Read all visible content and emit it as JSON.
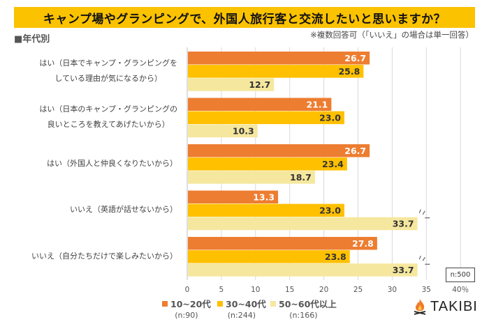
{
  "header": {
    "title": "キャンプ場やグランピングで、外国人旅行客と交流したいと思いますか？",
    "subtitle": "■年代別",
    "note": "※複数回答可（「いいえ」の場合は単一回答）"
  },
  "sample_note": "n:500",
  "brand": {
    "name": "TAKIBI",
    "icon": "campfire-icon"
  },
  "colors": {
    "banner": "#fbc200",
    "series1": "#ed7d31",
    "series2": "#ffc000",
    "series3": "#f5e79e"
  },
  "chart_data": {
    "type": "bar",
    "orientation": "horizontal",
    "title": "キャンプ場やグランピングで、外国人旅行客と交流したいと思いますか？",
    "xlabel": "",
    "ylabel": "",
    "xlim": [
      0,
      40
    ],
    "x_ticks": [
      "0",
      "5",
      "10",
      "15",
      "20",
      "25",
      "30",
      "35",
      "40％"
    ],
    "axis_break": "between 35 and 40",
    "grid": true,
    "legend_position": "bottom-left",
    "categories": [
      [
        "はい（日本でキャンプ・グランピングを",
        "している理由が気になるから）"
      ],
      [
        "はい（日本のキャンプ・グランピングの",
        "良いところを教えてあげたいから）"
      ],
      [
        "はい（外国人と仲良くなりたいから）"
      ],
      [
        "いいえ（英語が話せないから）"
      ],
      [
        "いいえ（自分たちだけで楽しみたいから）"
      ]
    ],
    "series": [
      {
        "name": "10~20代",
        "n": "(n:90)",
        "color": "#ed7d31",
        "values": [
          26.7,
          21.1,
          26.7,
          13.3,
          27.8
        ],
        "label_color": "#ffffff"
      },
      {
        "name": "30~40代",
        "n": "(n:244)",
        "color": "#ffc000",
        "values": [
          25.8,
          23.0,
          23.4,
          23.0,
          23.8
        ],
        "label_color": "#333333"
      },
      {
        "name": "50~60代以上",
        "n": "(n:166)",
        "color": "#f5e79e",
        "values": [
          12.7,
          10.3,
          18.7,
          33.7,
          33.7
        ],
        "label_color": "#333333"
      }
    ]
  }
}
